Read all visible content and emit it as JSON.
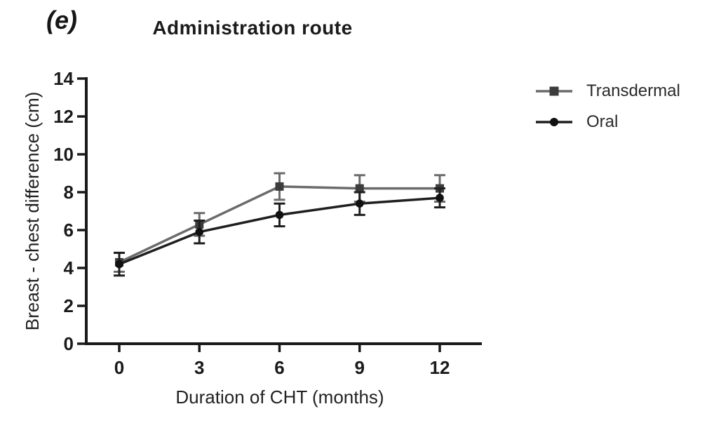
{
  "panel_label": "(e)",
  "chart_data": {
    "type": "line",
    "title": "Administration route",
    "xlabel": "Duration of CHT (months)",
    "ylabel": "Breast - chest difference (cm)",
    "x": [
      0,
      3,
      6,
      9,
      12
    ],
    "xticks": [
      0,
      3,
      6,
      9,
      12
    ],
    "yticks": [
      0,
      2,
      4,
      6,
      8,
      10,
      12,
      14
    ],
    "ylim": [
      0,
      14
    ],
    "xlim": [
      0,
      12
    ],
    "grid": false,
    "error_bars": true,
    "legend_position": "right",
    "axis_color": "#1a1a1a",
    "series": [
      {
        "name": "Transdermal",
        "marker": "square",
        "line_color": "#6b6b6b",
        "marker_color": "#3c3c3c",
        "values": [
          4.3,
          6.3,
          8.3,
          8.2,
          8.2
        ],
        "errors": [
          0.5,
          0.6,
          0.7,
          0.7,
          0.7
        ]
      },
      {
        "name": "Oral",
        "marker": "circle",
        "line_color": "#1f1f1f",
        "marker_color": "#111111",
        "values": [
          4.2,
          5.9,
          6.8,
          7.4,
          7.7
        ],
        "errors": [
          0.6,
          0.6,
          0.6,
          0.6,
          0.5
        ]
      }
    ]
  }
}
